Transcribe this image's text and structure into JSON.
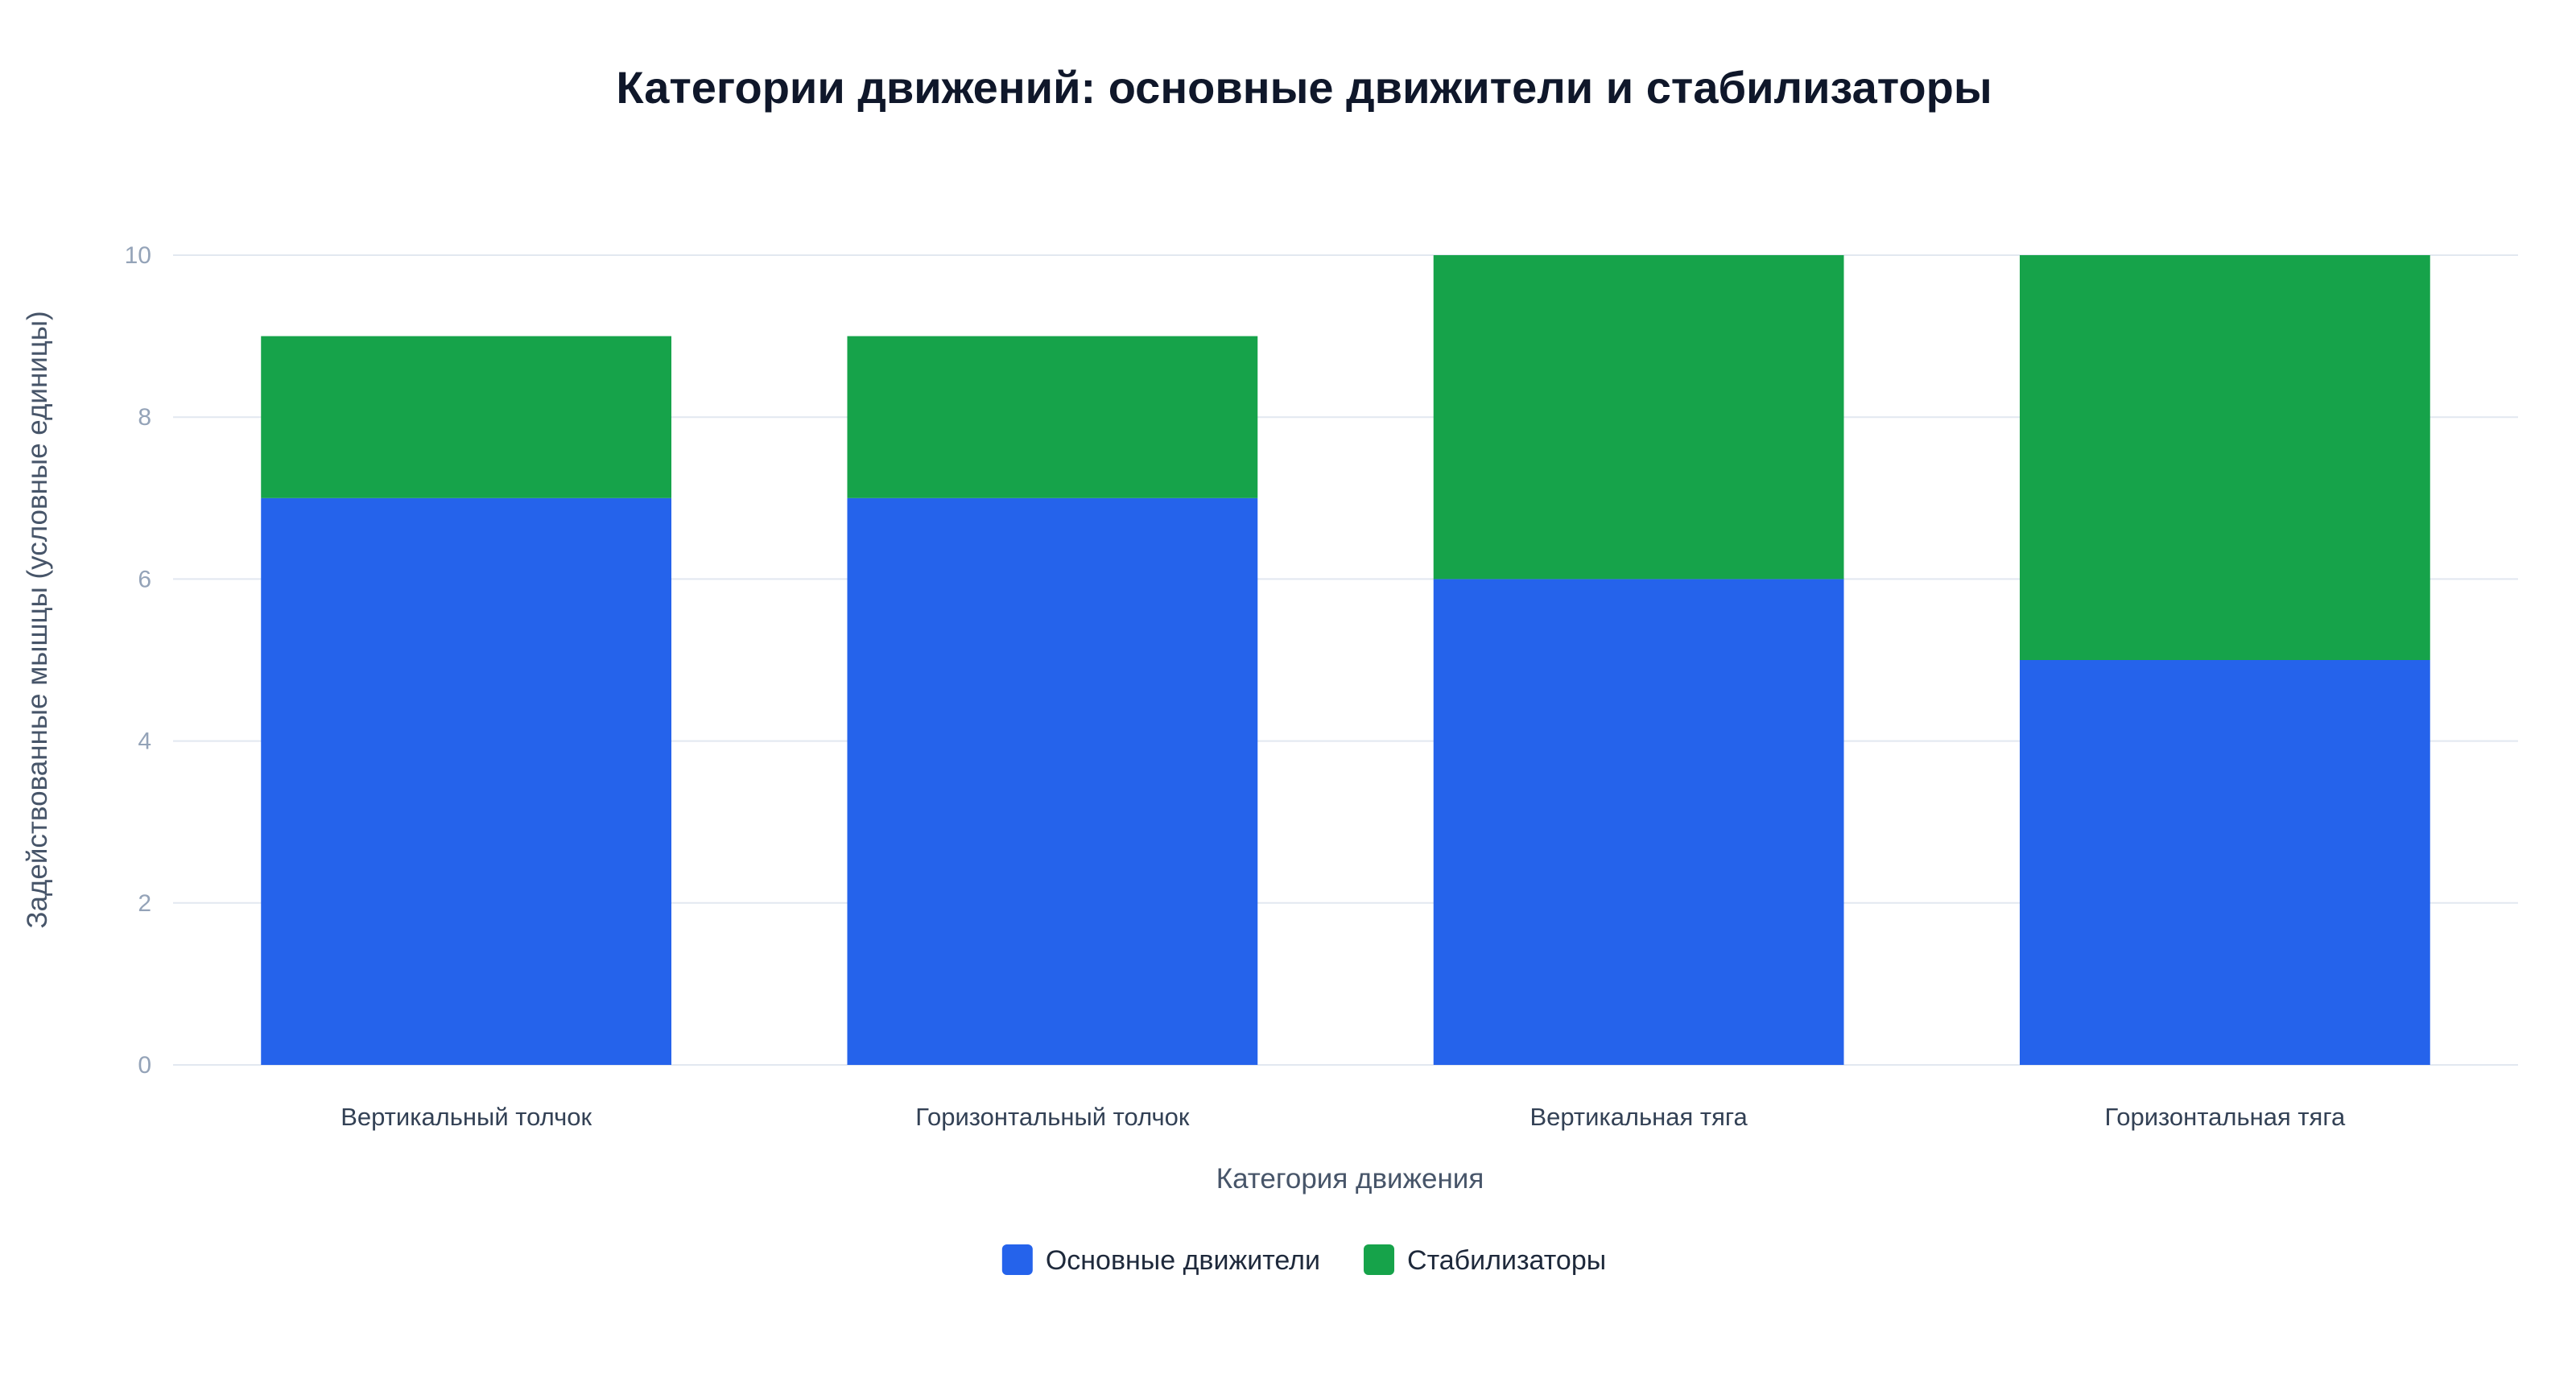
{
  "chart_data": {
    "type": "bar",
    "stacked": true,
    "title": "Категории движений: основные движители и стабилизаторы",
    "xlabel": "Категория движения",
    "ylabel": "Задействованные мышцы (условные единицы)",
    "categories": [
      "Вертикальный толчок",
      "Горизонтальный толчок",
      "Вертикальная тяга",
      "Горизонтальная тяга"
    ],
    "series": [
      {
        "name": "Основные движители",
        "values": [
          7,
          7,
          6,
          5
        ],
        "color": "#2563eb"
      },
      {
        "name": "Стабилизаторы",
        "values": [
          2,
          2,
          4,
          5
        ],
        "color": "#16a34a"
      }
    ],
    "ylim": [
      0,
      10
    ],
    "yticks": [
      "0",
      "2",
      "4",
      "6",
      "8",
      "10"
    ],
    "grid": true,
    "legend": "bottom-center"
  }
}
